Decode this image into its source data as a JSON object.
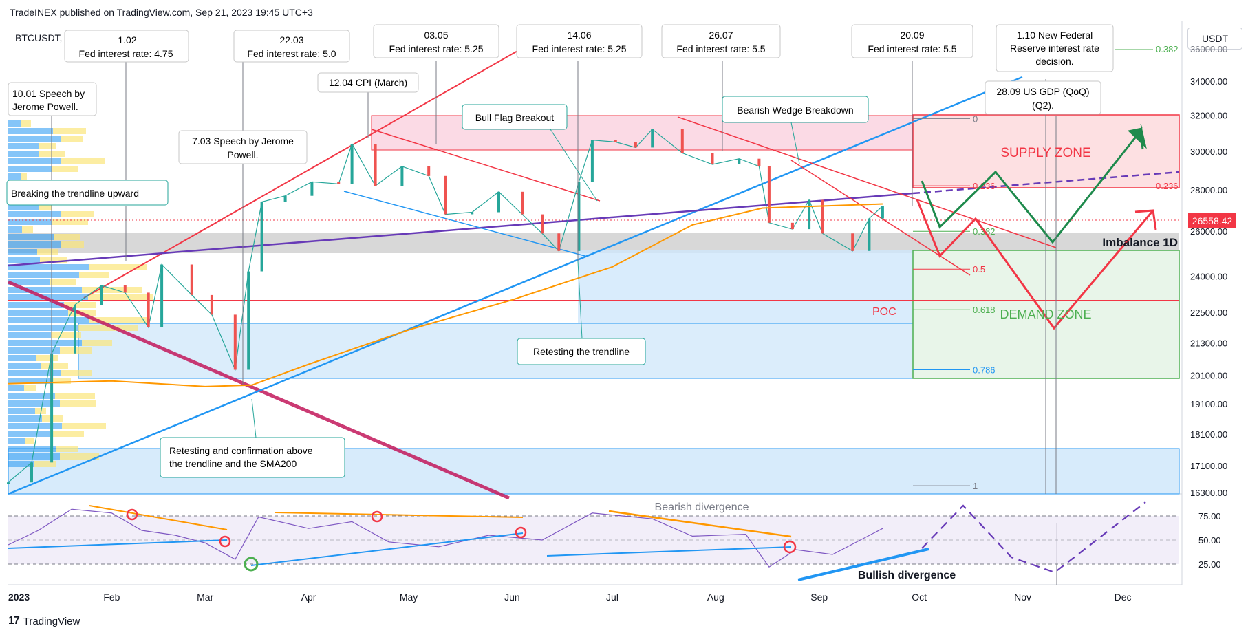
{
  "header": {
    "publisher": "TradeINEX published on TradingView.com, Sep 21, 2023 19:45 UTC+3"
  },
  "symbol": "BTCUSDT, 1D, BINANCE",
  "currency_button": "USDT",
  "last_price": "26558.42",
  "footer": {
    "brand": "TradingView",
    "mark": "17"
  },
  "colors": {
    "supply": "#f23645",
    "demand": "#4caf50",
    "trend": "#2196f3",
    "sma": "#ff9800",
    "purple": "#673ab7",
    "rsi": "#7e57c2"
  },
  "annotations": {
    "fed_0102": {
      "date": "1.02",
      "text": "Fed interest rate: 4.75"
    },
    "fed_2203": {
      "date": "22.03",
      "text": "Fed interest rate: 5.0"
    },
    "fed_0305": {
      "date": "03.05",
      "text": "Fed interest rate: 5.25"
    },
    "fed_1406": {
      "date": "14.06",
      "text": "Fed interest rate: 5.25"
    },
    "fed_2607": {
      "date": "26.07",
      "text": "Fed interest rate: 5.5"
    },
    "fed_2009": {
      "date": "20.09",
      "text": "Fed interest rate: 5.5"
    },
    "fed_0110": {
      "line1": "1.10 New Federal",
      "line2": "Reserve interest rate",
      "line3": "decision."
    },
    "gdp": {
      "line1": "28.09 US GDP (QoQ)",
      "line2": "(Q2)."
    },
    "speech_1001": {
      "line1": "10.01 Speech by",
      "line2": "Jerome Powell."
    },
    "cpi": "12.04 CPI (March)",
    "speech_0703": {
      "line1": "7.03 Speech by Jerome",
      "line2": "Powell."
    },
    "break_trend": "Breaking the trendline upward",
    "bull_flag": "Bull Flag Breakout",
    "bear_wedge": "Bearish Wedge Breakdown",
    "retest_trend": "Retesting the trendline",
    "retest_confirm": {
      "line1": "Retesting and confirmation above",
      "line2": "the trendline and the SMA200"
    },
    "supply_zone": "SUPPLY ZONE",
    "demand_zone": "DEMAND ZONE",
    "imbalance": "Imbalance 1D",
    "poc": "POC",
    "bearish_div": "Bearish divergence",
    "bullish_div": "Bullish divergence"
  },
  "fib_levels": [
    "0",
    "0.236",
    "0.382",
    "0.5",
    "0.618",
    "0.786",
    "1"
  ],
  "fib_right": {
    "top": "0.382",
    "mid": "0.236"
  },
  "chart_data": [
    {
      "type": "line",
      "title": "BTCUSDT, 1D, BINANCE",
      "x_ticks": [
        "2023",
        "Feb",
        "Mar",
        "Apr",
        "May",
        "Jun",
        "Jul",
        "Aug",
        "Sep",
        "Oct",
        "Nov",
        "Dec"
      ],
      "y_ticks": [
        "34000.00",
        "32000.00",
        "30000.00",
        "28000.00",
        "26000.00",
        "24000.00",
        "22500.00",
        "21300.00",
        "20100.00",
        "19100.00",
        "18100.00",
        "17100.00",
        "16300.00"
      ],
      "price_top_partial": "36000.00",
      "y_scale": "log",
      "series": [
        {
          "name": "BTCUSDT",
          "x": [
            "2023-01-01",
            "2023-01-08",
            "2023-01-14",
            "2023-01-21",
            "2023-01-29",
            "2023-02-05",
            "2023-02-12",
            "2023-02-16",
            "2023-02-25",
            "2023-03-03",
            "2023-03-10",
            "2023-03-14",
            "2023-03-18",
            "2023-03-25",
            "2023-04-02",
            "2023-04-10",
            "2023-04-14",
            "2023-04-21",
            "2023-04-29",
            "2023-05-07",
            "2023-05-12",
            "2023-05-20",
            "2023-05-28",
            "2023-06-04",
            "2023-06-10",
            "2023-06-15",
            "2023-06-21",
            "2023-06-25",
            "2023-07-02",
            "2023-07-08",
            "2023-07-13",
            "2023-07-22",
            "2023-07-31",
            "2023-08-08",
            "2023-08-14",
            "2023-08-17",
            "2023-08-24",
            "2023-08-29",
            "2023-09-02",
            "2023-09-11",
            "2023-09-16",
            "2023-09-20"
          ],
          "values": [
            16600,
            17200,
            20900,
            22800,
            23600,
            23300,
            21900,
            24500,
            23200,
            22400,
            20300,
            24200,
            27400,
            27700,
            28400,
            28300,
            30400,
            28200,
            29200,
            28700,
            26800,
            26900,
            27900,
            26800,
            25900,
            25100,
            28400,
            30600,
            30500,
            30200,
            31200,
            29900,
            29300,
            29600,
            29200,
            26400,
            26100,
            27500,
            25900,
            25100,
            26600,
            27200
          ]
        },
        {
          "name": "SMA200",
          "x": [
            "2023-01-01",
            "2023-02-01",
            "2023-03-01",
            "2023-03-15",
            "2023-04-01",
            "2023-05-01",
            "2023-06-01",
            "2023-07-01",
            "2023-07-25",
            "2023-08-15",
            "2023-09-20"
          ],
          "values": [
            19800,
            19900,
            19700,
            19750,
            20500,
            21800,
            23000,
            24400,
            26300,
            27100,
            27300
          ]
        }
      ],
      "fibonacci": {
        "0": 31800,
        "0.236": 28200,
        "0.382": 26000,
        "0.5": 24300,
        "0.618": 22600,
        "0.786": 20300,
        "1": 16500
      },
      "zones": {
        "supply": [
          28100,
          31800
        ],
        "demand": [
          20100,
          25100
        ],
        "imbalance": [
          25100,
          26000
        ],
        "poc": 23000
      },
      "grid": false
    },
    {
      "type": "line",
      "title": "RSI",
      "y_ticks": [
        "75.00",
        "50.00",
        "25.00"
      ],
      "band": [
        30,
        70
      ],
      "series": [
        {
          "name": "RSI",
          "x": [
            "2023-01-01",
            "2023-01-10",
            "2023-01-20",
            "2023-02-01",
            "2023-02-10",
            "2023-02-20",
            "2023-03-01",
            "2023-03-10",
            "2023-03-17",
            "2023-04-01",
            "2023-04-14",
            "2023-04-25",
            "2023-05-10",
            "2023-05-25",
            "2023-06-10",
            "2023-06-25",
            "2023-07-13",
            "2023-07-25",
            "2023-08-10",
            "2023-08-17",
            "2023-08-25",
            "2023-09-05",
            "2023-09-20"
          ],
          "values": [
            45,
            60,
            82,
            78,
            60,
            55,
            47,
            30,
            74,
            62,
            69,
            48,
            43,
            55,
            50,
            78,
            72,
            54,
            56,
            22,
            40,
            35,
            62
          ]
        }
      ]
    }
  ]
}
